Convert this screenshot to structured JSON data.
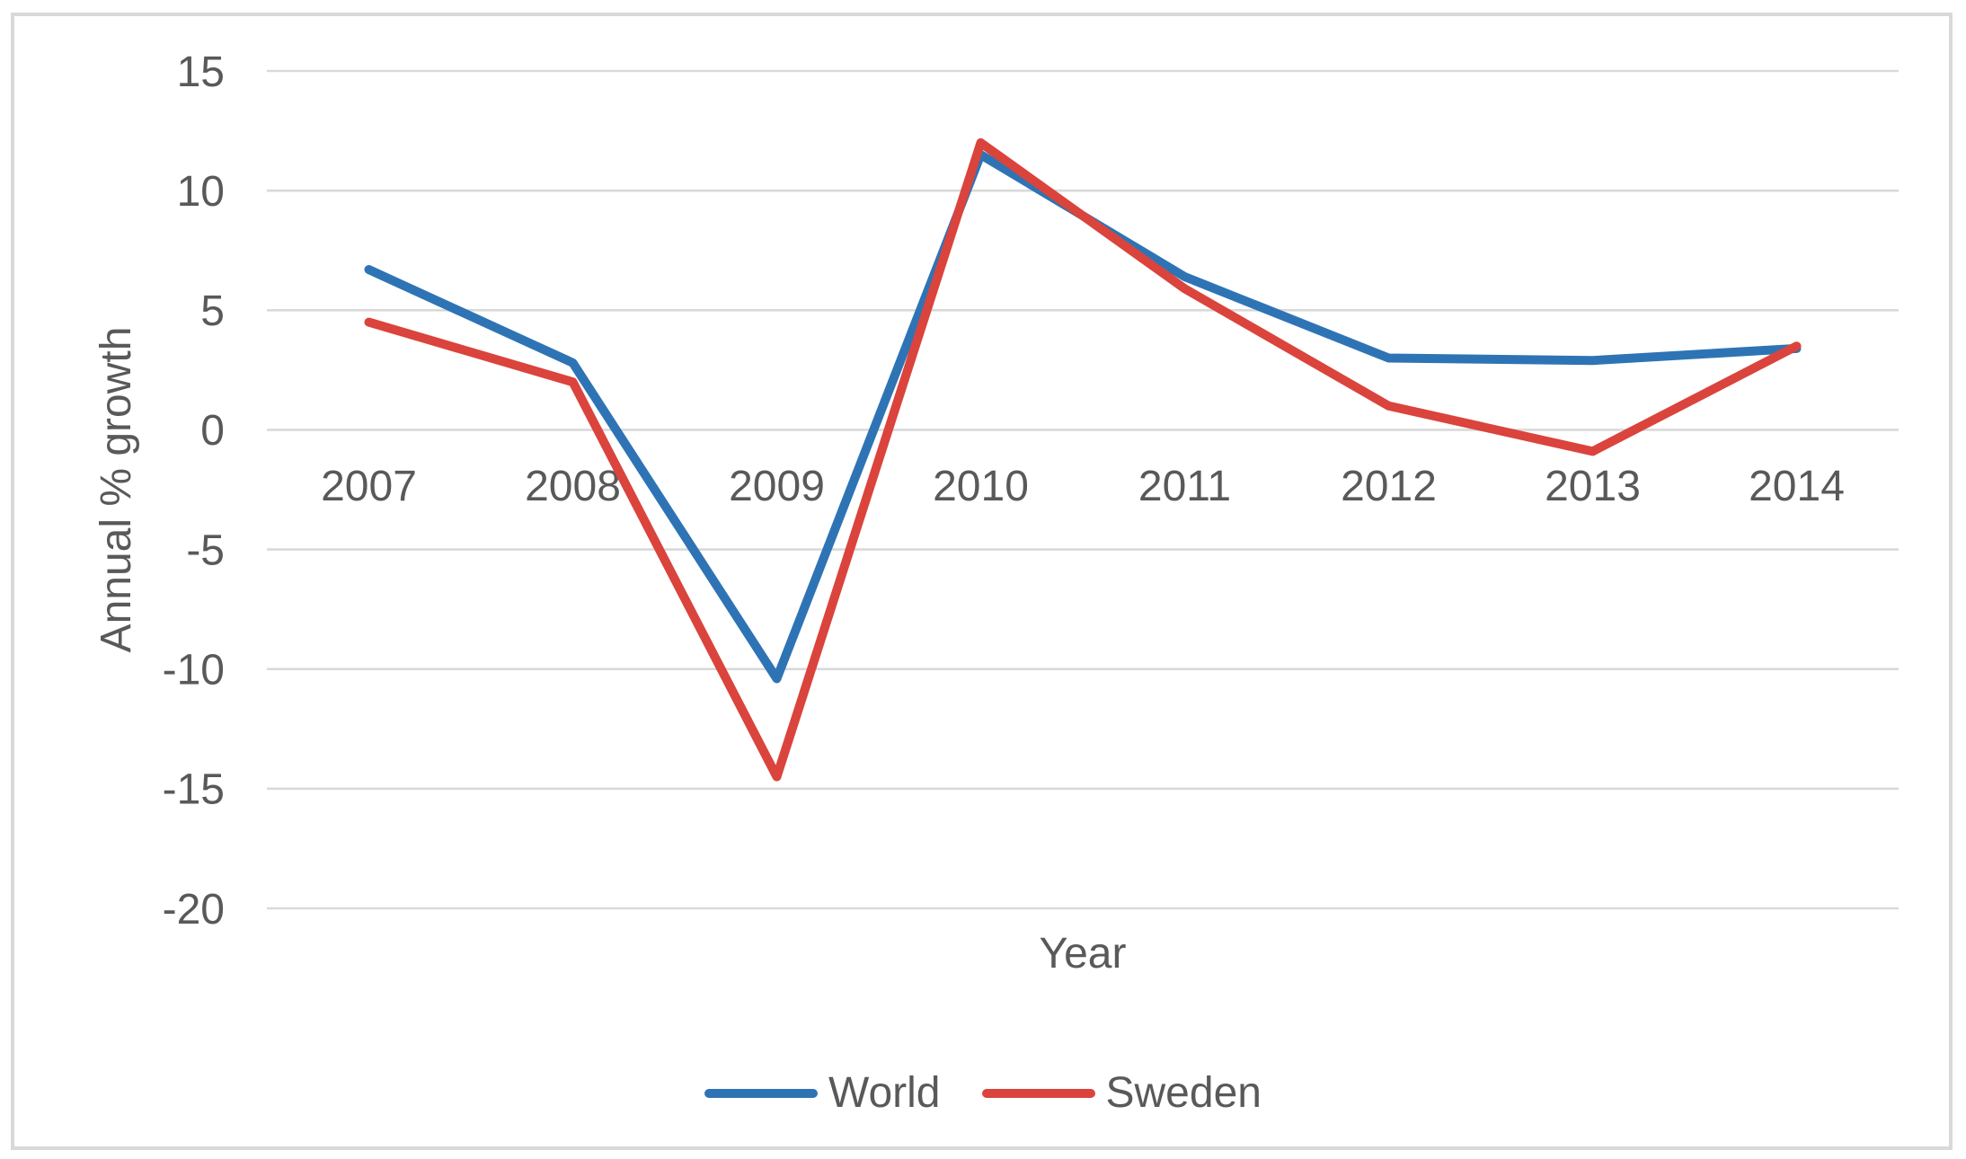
{
  "chart_data": {
    "type": "line",
    "title": "",
    "xlabel": "Year",
    "ylabel": "Annual % growth",
    "categories": [
      "2007",
      "2008",
      "2009",
      "2010",
      "2011",
      "2012",
      "2013",
      "2014"
    ],
    "series": [
      {
        "name": "World",
        "color": "#2E74B5",
        "values": [
          6.7,
          2.8,
          -10.4,
          11.5,
          6.4,
          3.0,
          2.9,
          3.4
        ]
      },
      {
        "name": "Sweden",
        "color": "#DA443C",
        "values": [
          4.5,
          2.0,
          -14.5,
          12.0,
          5.9,
          1.0,
          -0.9,
          3.5
        ]
      }
    ],
    "ylim": [
      -20,
      15
    ],
    "yticks": [
      15,
      10,
      5,
      0,
      -5,
      -10,
      -15,
      -20
    ],
    "grid": true,
    "legend_position": "bottom"
  },
  "colors": {
    "gridline": "#D9D9D9",
    "frame_border": "#D9D9D9",
    "text": "#595959"
  }
}
